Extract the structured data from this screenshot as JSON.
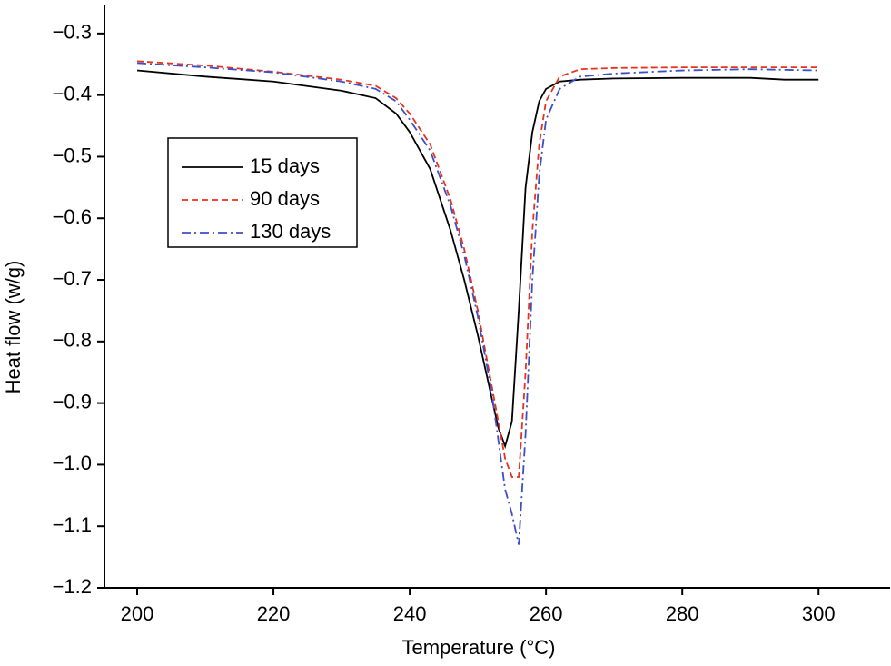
{
  "chart_data": {
    "type": "line",
    "x_label": "Temperature (°C)",
    "y_label": "Heat flow (w/g)",
    "x": [
      200,
      210,
      220,
      230,
      235,
      238,
      240,
      243,
      246,
      248,
      250,
      252,
      253,
      254,
      255,
      256,
      257,
      258,
      259,
      260,
      262,
      265,
      270,
      280,
      290,
      295,
      300
    ],
    "series": [
      {
        "name": "15 days",
        "color": "#000000",
        "dash": "solid",
        "values": [
          -0.36,
          -0.37,
          -0.378,
          -0.393,
          -0.405,
          -0.43,
          -0.46,
          -0.52,
          -0.62,
          -0.7,
          -0.79,
          -0.89,
          -0.94,
          -0.97,
          -0.93,
          -0.75,
          -0.55,
          -0.46,
          -0.41,
          -0.39,
          -0.378,
          -0.375,
          -0.373,
          -0.372,
          -0.372,
          -0.375,
          -0.375
        ]
      },
      {
        "name": "90 days",
        "color": "#e8321e",
        "dash": "dashed",
        "values": [
          -0.345,
          -0.352,
          -0.362,
          -0.375,
          -0.385,
          -0.405,
          -0.43,
          -0.48,
          -0.57,
          -0.65,
          -0.75,
          -0.87,
          -0.93,
          -0.99,
          -1.02,
          -1.02,
          -0.85,
          -0.62,
          -0.48,
          -0.41,
          -0.37,
          -0.358,
          -0.356,
          -0.355,
          -0.355,
          -0.355,
          -0.355
        ]
      },
      {
        "name": "130 days",
        "color": "#3a4fc8",
        "dash": "dashdot",
        "values": [
          -0.348,
          -0.355,
          -0.363,
          -0.378,
          -0.39,
          -0.41,
          -0.44,
          -0.49,
          -0.58,
          -0.66,
          -0.76,
          -0.88,
          -0.96,
          -1.04,
          -1.08,
          -1.13,
          -0.95,
          -0.7,
          -0.53,
          -0.44,
          -0.39,
          -0.37,
          -0.365,
          -0.36,
          -0.358,
          -0.359,
          -0.36
        ]
      }
    ],
    "xlim": [
      195.2,
      310.5
    ],
    "ylim": [
      -1.2,
      -0.253
    ],
    "xticks": [
      200,
      220,
      240,
      260,
      280,
      300
    ],
    "yticks": [
      {
        "value": -0.3,
        "label": "−0.3"
      },
      {
        "value": -0.4,
        "label": "−0.4"
      },
      {
        "value": -0.5,
        "label": "−0.5"
      },
      {
        "value": -0.6,
        "label": "−0.6"
      },
      {
        "value": -0.7,
        "label": "−0.7"
      },
      {
        "value": -0.8,
        "label": "−0.8"
      },
      {
        "value": -0.9,
        "label": "−0.9"
      },
      {
        "value": -1.0,
        "label": "−1.0"
      },
      {
        "value": -1.1,
        "label": "−1.1"
      },
      {
        "value": -1.2,
        "label": "−1.2"
      }
    ],
    "legend": "upper left",
    "grid": false
  }
}
